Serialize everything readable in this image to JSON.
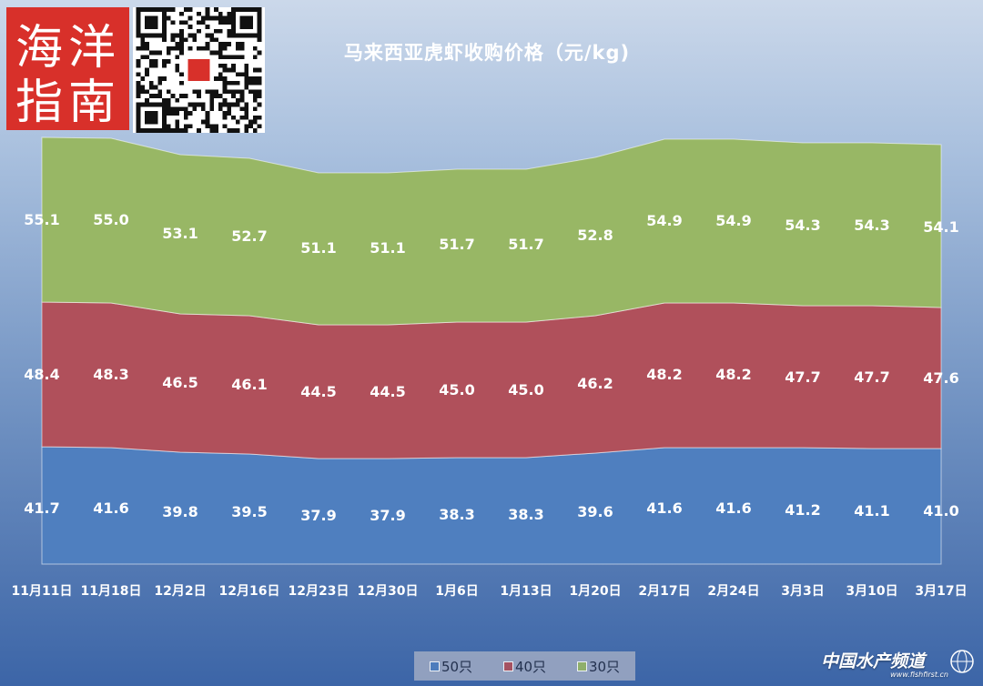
{
  "chart_data": {
    "type": "area",
    "title": "马来西亚虎虾收购价格（元/kg)",
    "categories": [
      "11月11日",
      "11月18日",
      "12月2日",
      "12月16日",
      "12月23日",
      "12月30日",
      "1月6日",
      "1月13日",
      "1月20日",
      "2月17日",
      "2月24日",
      "3月3日",
      "3月10日",
      "3月17日"
    ],
    "series": [
      {
        "name": "50只",
        "values": [
          41.7,
          41.6,
          39.8,
          39.5,
          37.9,
          37.9,
          38.3,
          38.3,
          39.6,
          41.6,
          41.6,
          41.2,
          41.1,
          41.0
        ],
        "color": "#4f7fbf"
      },
      {
        "name": "40只",
        "values": [
          48.4,
          48.3,
          46.5,
          46.1,
          44.5,
          44.5,
          45.0,
          45.0,
          46.2,
          48.2,
          48.2,
          47.7,
          47.7,
          47.6
        ],
        "color": "#b0505b"
      },
      {
        "name": "30只",
        "values": [
          55.1,
          55.0,
          53.1,
          52.7,
          51.1,
          51.1,
          51.7,
          51.7,
          52.8,
          54.9,
          54.9,
          54.3,
          54.3,
          54.1
        ],
        "color": "#98b765"
      }
    ],
    "stacked": true,
    "legend_position": "bottom"
  },
  "branding": {
    "logo_text": [
      "海",
      "洋",
      "指",
      "南"
    ],
    "watermark": "中国水产频道",
    "watermark_url": "www.fishfirst.cn"
  },
  "colors": {
    "label": "#ffffff"
  }
}
